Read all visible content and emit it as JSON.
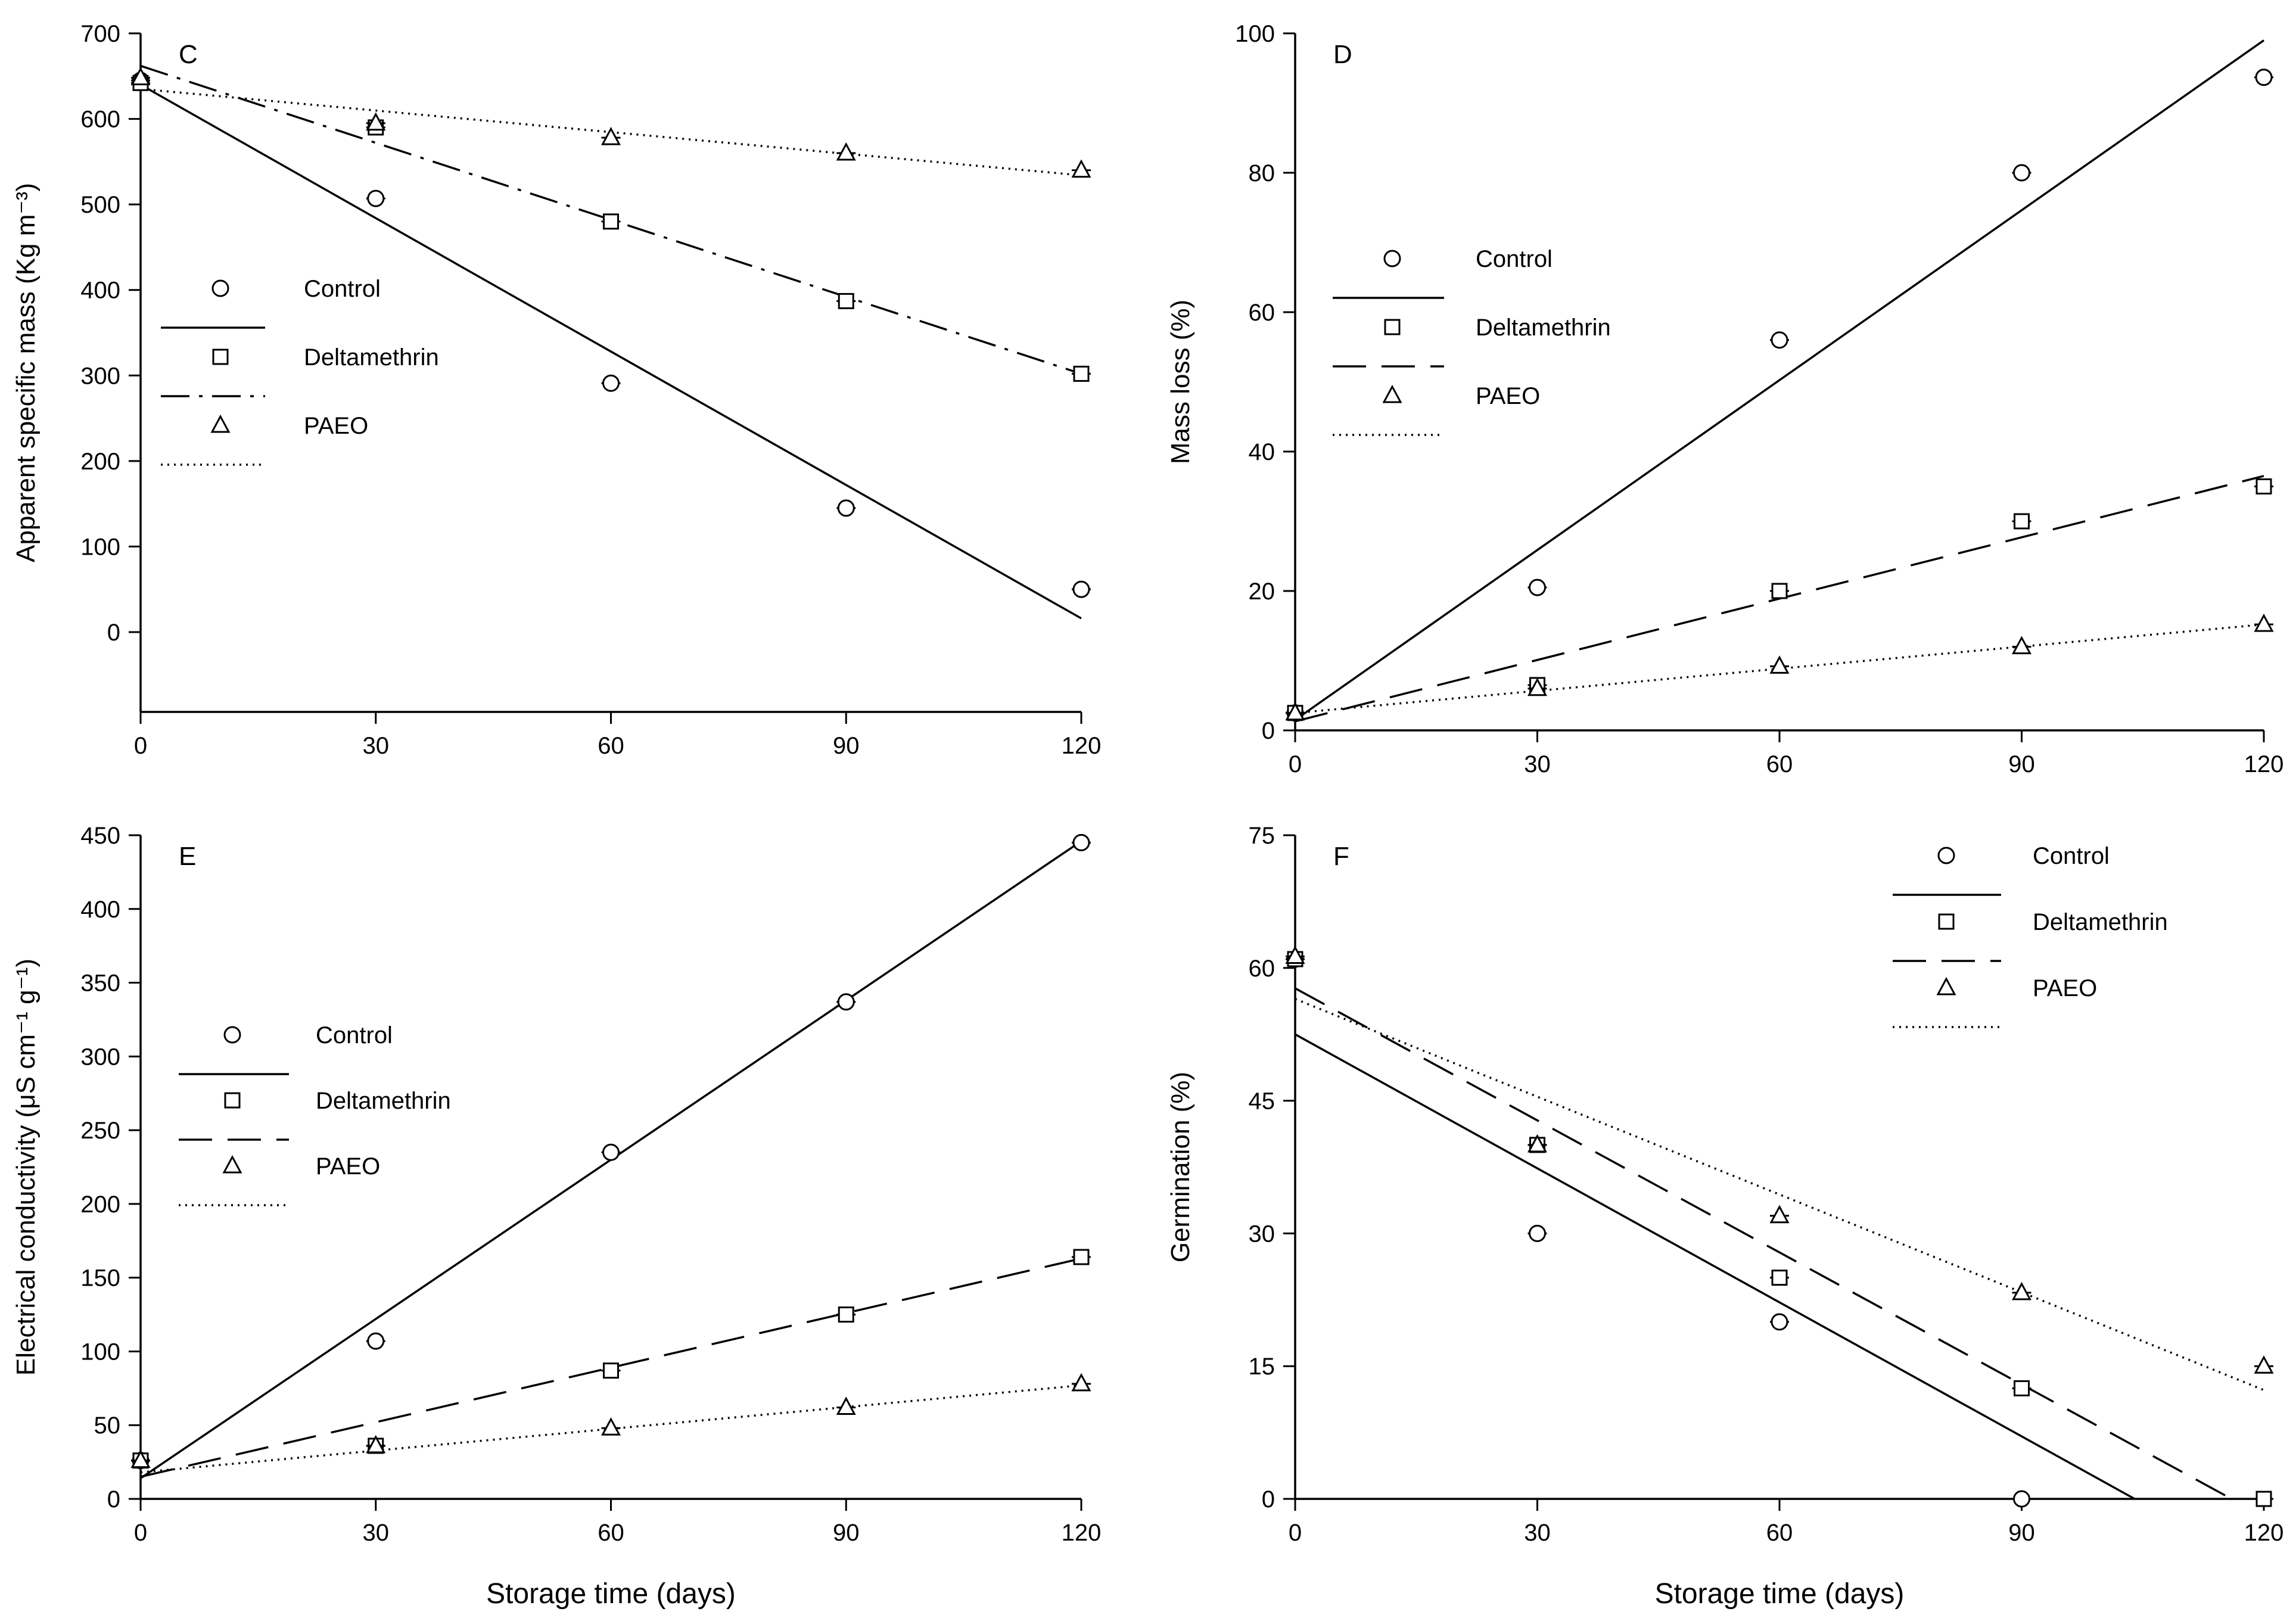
{
  "figure": {
    "xlabel_shared": "Storage time (days)"
  },
  "chart_data": [
    {
      "type": "scatter",
      "panel_label": "C",
      "xlabel": "",
      "ylabel": "Apparent specific mass (Kg m⁻³)",
      "x": [
        0,
        30,
        60,
        90,
        120
      ],
      "xlim": [
        0,
        120
      ],
      "ylim": [
        -100,
        700
      ],
      "xticks": [
        "0",
        "30",
        "60",
        "90",
        "120"
      ],
      "yticks": [
        "0",
        "100",
        "200",
        "300",
        "400",
        "500",
        "600",
        "700"
      ],
      "legend": {
        "position": "left-middle"
      },
      "series": [
        {
          "name": "Control",
          "marker": "circle",
          "line": "solid",
          "values": [
            645,
            507,
            291,
            145,
            50
          ],
          "fit": [
            640,
            16
          ]
        },
        {
          "name": "Deltamethrin",
          "marker": "square",
          "line": "dashdot",
          "values": [
            642,
            590,
            480,
            387,
            302
          ],
          "fit": [
            662,
            302
          ]
        },
        {
          "name": "PAEO",
          "marker": "triangle",
          "line": "dotted",
          "values": [
            648,
            595,
            578,
            560,
            540
          ],
          "fit": [
            635,
            534
          ]
        }
      ]
    },
    {
      "type": "scatter",
      "panel_label": "D",
      "xlabel": "",
      "ylabel": "Mass loss (%)",
      "x": [
        0,
        30,
        60,
        90,
        120
      ],
      "xlim": [
        0,
        120
      ],
      "ylim": [
        0,
        100
      ],
      "xticks": [
        "0",
        "30",
        "60",
        "90",
        "120"
      ],
      "yticks": [
        "0",
        "20",
        "40",
        "60",
        "80",
        "100"
      ],
      "legend": {
        "position": "left-upper"
      },
      "series": [
        {
          "name": "Control",
          "marker": "circle",
          "line": "solid",
          "values": [
            2.5,
            20.5,
            56,
            80,
            93.7
          ],
          "fit": [
            1.5,
            99
          ]
        },
        {
          "name": "Deltamethrin",
          "marker": "square",
          "line": "dashed",
          "values": [
            2.5,
            6.5,
            20,
            30,
            35
          ],
          "fit": [
            1.3,
            36.5
          ]
        },
        {
          "name": "PAEO",
          "marker": "triangle",
          "line": "dotted",
          "values": [
            2.5,
            6,
            9.2,
            12,
            15.2
          ],
          "fit": [
            2.5,
            15.2
          ]
        }
      ]
    },
    {
      "type": "scatter",
      "panel_label": "E",
      "xlabel": "Storage time (days)",
      "ylabel": "Electrical conductivity (μS cm⁻¹ g⁻¹)",
      "x": [
        0,
        30,
        60,
        90,
        120
      ],
      "xlim": [
        0,
        120
      ],
      "ylim": [
        0,
        450
      ],
      "xticks": [
        "0",
        "30",
        "60",
        "90",
        "120"
      ],
      "yticks": [
        "0",
        "50",
        "100",
        "150",
        "200",
        "250",
        "300",
        "350",
        "400",
        "450"
      ],
      "legend": {
        "position": "left-middle"
      },
      "series": [
        {
          "name": "Control",
          "marker": "circle",
          "line": "solid",
          "values": [
            26,
            107,
            235,
            337,
            445
          ],
          "fit": [
            14,
            446
          ]
        },
        {
          "name": "Deltamethrin",
          "marker": "square",
          "line": "dashed",
          "values": [
            26,
            36,
            87,
            125,
            164
          ],
          "fit": [
            15,
            163
          ]
        },
        {
          "name": "PAEO",
          "marker": "triangle",
          "line": "dotted",
          "values": [
            26,
            36,
            48,
            62,
            78
          ],
          "fit": [
            18,
            77
          ]
        }
      ]
    },
    {
      "type": "scatter",
      "panel_label": "F",
      "xlabel": "Storage time (days)",
      "ylabel": "Germination (%)",
      "x": [
        0,
        30,
        60,
        90,
        120
      ],
      "xlim": [
        0,
        120
      ],
      "ylim": [
        0,
        75
      ],
      "xticks": [
        "0",
        "30",
        "60",
        "90",
        "120"
      ],
      "yticks": [
        "0",
        "15",
        "30",
        "45",
        "60",
        "75"
      ],
      "legend": {
        "position": "top-right"
      },
      "series": [
        {
          "name": "Control",
          "marker": "circle",
          "line": "solid",
          "values": [
            61,
            30,
            20,
            0,
            null
          ],
          "fit_x": [
            0,
            104
          ],
          "fit": [
            52.5,
            0
          ]
        },
        {
          "name": "Deltamethrin",
          "marker": "square",
          "line": "dashed",
          "values": [
            61,
            40,
            25,
            12.5,
            0
          ],
          "fit_x": [
            0,
            116
          ],
          "fit": [
            57.7,
            0
          ]
        },
        {
          "name": "PAEO",
          "marker": "triangle",
          "line": "dotted",
          "values": [
            61.3,
            40,
            32,
            23.3,
            15
          ],
          "fit_x": [
            0,
            120
          ],
          "fit": [
            56.5,
            12.3
          ]
        }
      ]
    }
  ]
}
